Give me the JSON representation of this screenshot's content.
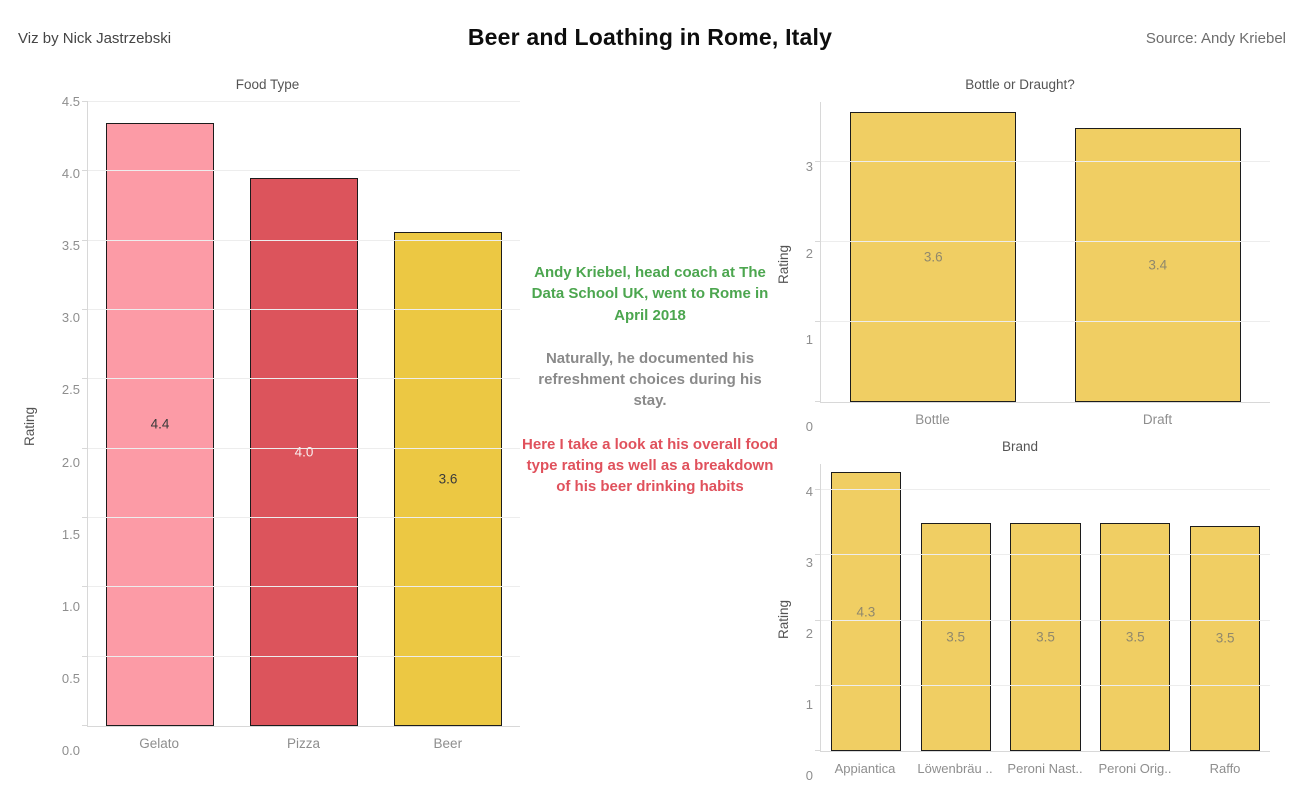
{
  "header": {
    "author": "Viz by Nick Jastrzebski",
    "title": "Beer and Loathing in Rome, Italy",
    "source": "Source: Andy Kriebel"
  },
  "annotation": {
    "para_green": "Andy Kriebel, head coach at The Data School UK, went to Rome in April 2018",
    "para_gray": "Naturally, he documented his refreshment choices during his stay.",
    "para_red": "Here I take a look at his overall food type rating as well as a breakdown of his beer drinking habits",
    "green_color": "#4CA64F",
    "gray_color": "#8A8A8A",
    "red_color": "#E0515C"
  },
  "colors": {
    "pink": "#FC9BA6",
    "red": "#DC545C",
    "gold_left": "#ECC843",
    "gold_right": "#F0CE63",
    "axis_line": "#D8D8D8",
    "gridline": "#EDEDED",
    "tick_text": "#8E8E8E",
    "chart_title_text": "#545454",
    "bar_border": "#1C1C1C"
  },
  "chart_data": [
    {
      "id": "food-type",
      "type": "bar",
      "title": "Food Type",
      "ylabel": "Rating",
      "ylim": [
        0,
        4.5
      ],
      "grid": true,
      "yticks": [
        0,
        0.5,
        1,
        1.5,
        2,
        2.5,
        3,
        3.5,
        4,
        4.5
      ],
      "ytick_labels": [
        "0.0",
        "0.5",
        "1.0",
        "1.5",
        "2.0",
        "2.5",
        "3.0",
        "3.5",
        "4.0",
        "4.5"
      ],
      "categories": [
        "Gelato",
        "Pizza",
        "Beer"
      ],
      "values": [
        4.4,
        4.0,
        3.6
      ],
      "value_labels": [
        "4.4",
        "4.0",
        "3.6"
      ],
      "render_values": [
        4.35,
        3.95,
        3.56
      ],
      "bar_colors": [
        "#FC9BA6",
        "#DC545C",
        "#ECC843"
      ],
      "value_label_colors": [
        "#3B3B3B",
        "#F9EDED",
        "#3B3B3B"
      ],
      "bar_width_pct": 75
    },
    {
      "id": "bottle-draught",
      "type": "bar",
      "title": "Bottle or Draught?",
      "ylabel": "Rating",
      "ylim": [
        0,
        3.75
      ],
      "grid": true,
      "yticks": [
        0,
        1,
        2,
        3
      ],
      "ytick_labels": [
        "0",
        "1",
        "2",
        "3"
      ],
      "categories": [
        "Bottle",
        "Draft"
      ],
      "values": [
        3.6,
        3.4
      ],
      "value_labels": [
        "3.6",
        "3.4"
      ],
      "render_values": [
        3.62,
        3.43
      ],
      "bar_colors": [
        "#F0CE63",
        "#F0CE63"
      ],
      "value_label_colors": [
        "#90886C",
        "#90886C"
      ],
      "bar_width_pct": 74
    },
    {
      "id": "brand",
      "type": "bar",
      "title": "Brand",
      "ylabel": "Rating",
      "ylim": [
        0,
        4.4
      ],
      "grid": true,
      "yticks": [
        0,
        1,
        2,
        3,
        4
      ],
      "ytick_labels": [
        "0",
        "1",
        "2",
        "3",
        "4"
      ],
      "categories": [
        "Appiantica",
        "Löwenbräu ..",
        "Peroni Nast..",
        "Peroni Orig..",
        "Raffo"
      ],
      "values": [
        4.3,
        3.5,
        3.5,
        3.5,
        3.5
      ],
      "value_labels": [
        "4.3",
        "3.5",
        "3.5",
        "3.5",
        "3.5"
      ],
      "render_values": [
        4.27,
        3.5,
        3.5,
        3.5,
        3.45
      ],
      "bar_colors": [
        "#F0CE63",
        "#F0CE63",
        "#F0CE63",
        "#F0CE63",
        "#F0CE63"
      ],
      "value_label_colors": [
        "#90886C",
        "#90886C",
        "#90886C",
        "#90886C",
        "#90886C"
      ],
      "bar_width_pct": 78
    }
  ]
}
